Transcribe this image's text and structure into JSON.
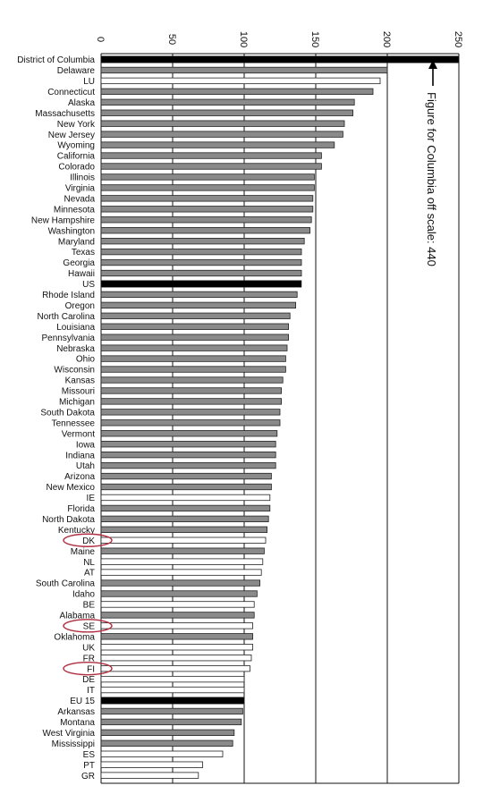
{
  "chart_data": {
    "type": "bar",
    "orientation": "horizontal",
    "xlim": [
      0,
      250
    ],
    "x_ticks": [
      "0",
      "50",
      "100",
      "150",
      "200",
      "250"
    ],
    "grid": "vertical",
    "annotation": "Figure for Columbia off scale: 440",
    "highlighted_categories": [
      "DK",
      "SE",
      "FI"
    ],
    "fill_legend_note": "gray = US state, white = EU country, black = aggregate",
    "categories": [
      {
        "label": "District of Columbia",
        "value": 440,
        "kind": "aggregate"
      },
      {
        "label": "Delaware",
        "value": 200,
        "kind": "state"
      },
      {
        "label": "LU",
        "value": 195,
        "kind": "eu"
      },
      {
        "label": "Connecticut",
        "value": 190,
        "kind": "state"
      },
      {
        "label": "Alaska",
        "value": 177,
        "kind": "state"
      },
      {
        "label": "Massachusetts",
        "value": 176,
        "kind": "state"
      },
      {
        "label": "New York",
        "value": 170,
        "kind": "state"
      },
      {
        "label": "New Jersey",
        "value": 169,
        "kind": "state"
      },
      {
        "label": "Wyoming",
        "value": 163,
        "kind": "state"
      },
      {
        "label": "California",
        "value": 154,
        "kind": "state"
      },
      {
        "label": "Colorado",
        "value": 154,
        "kind": "state"
      },
      {
        "label": "Illinois",
        "value": 149,
        "kind": "state"
      },
      {
        "label": "Virginia",
        "value": 149,
        "kind": "state"
      },
      {
        "label": "Nevada",
        "value": 148,
        "kind": "state"
      },
      {
        "label": "Minnesota",
        "value": 148,
        "kind": "state"
      },
      {
        "label": "New Hampshire",
        "value": 147,
        "kind": "state"
      },
      {
        "label": "Washington",
        "value": 146,
        "kind": "state"
      },
      {
        "label": "Maryland",
        "value": 142,
        "kind": "state"
      },
      {
        "label": "Texas",
        "value": 140,
        "kind": "state"
      },
      {
        "label": "Georgia",
        "value": 140,
        "kind": "state"
      },
      {
        "label": "Hawaii",
        "value": 140,
        "kind": "state"
      },
      {
        "label": "US",
        "value": 140,
        "kind": "aggregate"
      },
      {
        "label": "Rhode Island",
        "value": 137,
        "kind": "state"
      },
      {
        "label": "Oregon",
        "value": 136,
        "kind": "state"
      },
      {
        "label": "North Carolina",
        "value": 132,
        "kind": "state"
      },
      {
        "label": "Louisiana",
        "value": 131,
        "kind": "state"
      },
      {
        "label": "Pennsylvania",
        "value": 131,
        "kind": "state"
      },
      {
        "label": "Nebraska",
        "value": 130,
        "kind": "state"
      },
      {
        "label": "Ohio",
        "value": 129,
        "kind": "state"
      },
      {
        "label": "Wisconsin",
        "value": 129,
        "kind": "state"
      },
      {
        "label": "Kansas",
        "value": 127,
        "kind": "state"
      },
      {
        "label": "Missouri",
        "value": 126,
        "kind": "state"
      },
      {
        "label": "Michigan",
        "value": 126,
        "kind": "state"
      },
      {
        "label": "South Dakota",
        "value": 125,
        "kind": "state"
      },
      {
        "label": "Tennessee",
        "value": 125,
        "kind": "state"
      },
      {
        "label": "Vermont",
        "value": 123,
        "kind": "state"
      },
      {
        "label": "Iowa",
        "value": 122,
        "kind": "state"
      },
      {
        "label": "Indiana",
        "value": 122,
        "kind": "state"
      },
      {
        "label": "Utah",
        "value": 122,
        "kind": "state"
      },
      {
        "label": "Arizona",
        "value": 119,
        "kind": "state"
      },
      {
        "label": "New Mexico",
        "value": 119,
        "kind": "state"
      },
      {
        "label": "IE",
        "value": 118,
        "kind": "eu"
      },
      {
        "label": "Florida",
        "value": 118,
        "kind": "state"
      },
      {
        "label": "North Dakota",
        "value": 117,
        "kind": "state"
      },
      {
        "label": "Kentucky",
        "value": 116,
        "kind": "state"
      },
      {
        "label": "DK",
        "value": 115,
        "kind": "eu"
      },
      {
        "label": "Maine",
        "value": 114,
        "kind": "state"
      },
      {
        "label": "NL",
        "value": 113,
        "kind": "eu"
      },
      {
        "label": "AT",
        "value": 112,
        "kind": "eu"
      },
      {
        "label": "South Carolina",
        "value": 111,
        "kind": "state"
      },
      {
        "label": "Idaho",
        "value": 109,
        "kind": "state"
      },
      {
        "label": "BE",
        "value": 107,
        "kind": "eu"
      },
      {
        "label": "Alabama",
        "value": 107,
        "kind": "state"
      },
      {
        "label": "SE",
        "value": 106,
        "kind": "eu"
      },
      {
        "label": "Oklahoma",
        "value": 106,
        "kind": "state"
      },
      {
        "label": "UK",
        "value": 106,
        "kind": "eu"
      },
      {
        "label": "FR",
        "value": 105,
        "kind": "eu"
      },
      {
        "label": "FI",
        "value": 104,
        "kind": "eu"
      },
      {
        "label": "DE",
        "value": 100,
        "kind": "eu"
      },
      {
        "label": "IT",
        "value": 100,
        "kind": "eu"
      },
      {
        "label": "EU 15",
        "value": 100,
        "kind": "aggregate"
      },
      {
        "label": "Arkansas",
        "value": 99,
        "kind": "state"
      },
      {
        "label": "Montana",
        "value": 98,
        "kind": "state"
      },
      {
        "label": "West Virginia",
        "value": 93,
        "kind": "state"
      },
      {
        "label": "Mississippi",
        "value": 92,
        "kind": "state"
      },
      {
        "label": "ES",
        "value": 85,
        "kind": "eu"
      },
      {
        "label": "PT",
        "value": 71,
        "kind": "eu"
      },
      {
        "label": "GR",
        "value": 68,
        "kind": "eu"
      }
    ]
  },
  "colors": {
    "state": "#8a8a8a",
    "eu": "#ffffff",
    "aggregate": "#000000",
    "bar_stroke": "#222222",
    "grid": "#111111",
    "highlight_ring": "#b03040"
  }
}
